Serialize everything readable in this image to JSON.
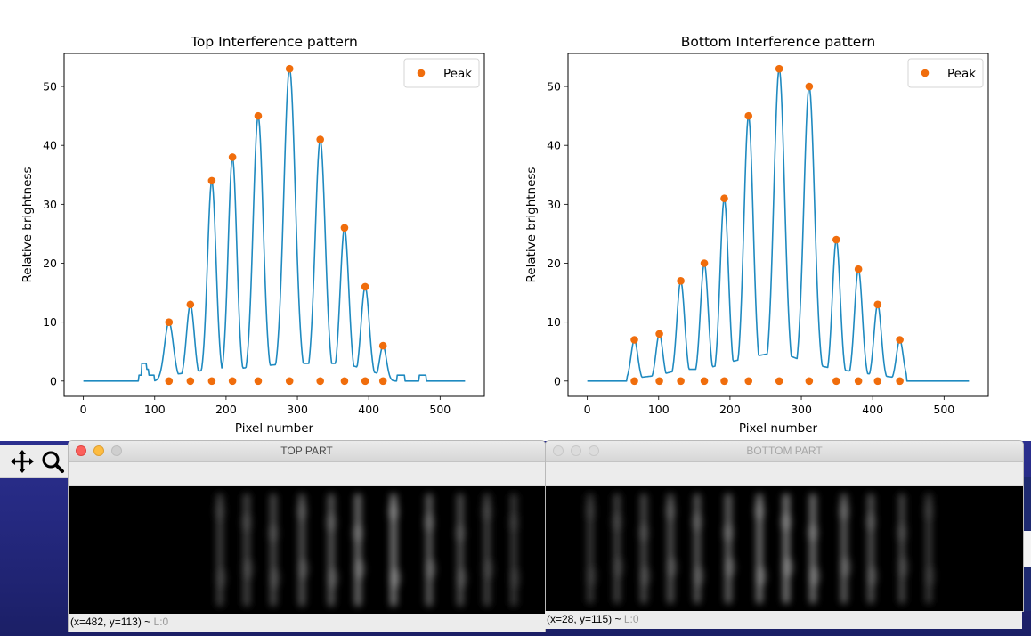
{
  "chart_data": [
    {
      "type": "line",
      "title": "Top Interference pattern",
      "xlabel": "Pixel number",
      "ylabel": "Relative brightness",
      "xlim": [
        -27,
        562
      ],
      "ylim": [
        -2.6,
        55.6
      ],
      "xticks": [
        0,
        100,
        200,
        300,
        400,
        500
      ],
      "yticks": [
        0,
        10,
        20,
        30,
        40,
        50
      ],
      "line_color": "#1f8ac0",
      "peak_color": "#f06d0c",
      "legend": {
        "position": "top-right",
        "label": "Peak"
      },
      "peaks": {
        "name": "Peak",
        "x": [
          120,
          150,
          180,
          209,
          245,
          289,
          332,
          366,
          395,
          420,
          120,
          150,
          180,
          209,
          245,
          289,
          332,
          366,
          395,
          420
        ],
        "y": [
          10,
          13,
          34,
          38,
          45,
          53,
          41,
          26,
          16,
          6,
          0,
          0,
          0,
          0,
          0,
          0,
          0,
          0,
          0,
          0
        ]
      },
      "signal": {
        "x_end": 535,
        "baseline_steps": [
          [
            78,
            82,
            1
          ],
          [
            82,
            89,
            3
          ],
          [
            89,
            92,
            2
          ],
          [
            92,
            100,
            1
          ],
          [
            432,
            440,
            0
          ],
          [
            440,
            445,
            1
          ],
          [
            445,
            451,
            1
          ],
          [
            451,
            455,
            0
          ],
          [
            471,
            475,
            1
          ],
          [
            475,
            481,
            1
          ]
        ],
        "fringes": [
          [
            120,
            10,
            6.2
          ],
          [
            150,
            13,
            5.5
          ],
          [
            180,
            34,
            6.0
          ],
          [
            209,
            38,
            6.0
          ],
          [
            245,
            45,
            7.0
          ],
          [
            289,
            53,
            8.0
          ],
          [
            332,
            41,
            7.0
          ],
          [
            366,
            26,
            6.0
          ],
          [
            395,
            16,
            5.8
          ],
          [
            420,
            6,
            4.8
          ]
        ],
        "troughs": [
          1,
          1.5,
          2,
          2,
          2.5,
          3,
          3,
          3,
          2,
          1
        ],
        "support": [
          97,
          440
        ]
      }
    },
    {
      "type": "line",
      "title": "Bottom Interference pattern",
      "xlabel": "Pixel number",
      "ylabel": "Relative brightness",
      "xlim": [
        -27,
        562
      ],
      "ylim": [
        -2.6,
        55.6
      ],
      "xticks": [
        0,
        100,
        200,
        300,
        400,
        500
      ],
      "yticks": [
        0,
        10,
        20,
        30,
        40,
        50
      ],
      "line_color": "#1f8ac0",
      "peak_color": "#f06d0c",
      "legend": {
        "position": "top-right",
        "label": "Peak"
      },
      "peaks": {
        "name": "Peak",
        "x": [
          66,
          101,
          131,
          164,
          192,
          226,
          269,
          311,
          349,
          380,
          407,
          438,
          66,
          101,
          131,
          164,
          192,
          226,
          269,
          311,
          349,
          380,
          407,
          438
        ],
        "y": [
          7,
          8,
          17,
          20,
          31,
          45,
          53,
          50,
          24,
          19,
          13,
          7,
          0,
          0,
          0,
          0,
          0,
          0,
          0,
          0,
          0,
          0,
          0,
          0
        ]
      },
      "signal": {
        "x_end": 535,
        "baseline_steps": [],
        "fringes": [
          [
            66,
            7,
            4.8
          ],
          [
            101,
            8,
            4.8
          ],
          [
            131,
            17,
            5.5
          ],
          [
            164,
            20,
            5.5
          ],
          [
            192,
            31,
            5.8
          ],
          [
            226,
            45,
            6.5
          ],
          [
            269,
            53,
            7.5
          ],
          [
            311,
            50,
            7.5
          ],
          [
            349,
            24,
            5.5
          ],
          [
            380,
            19,
            5.5
          ],
          [
            407,
            13,
            5.2
          ],
          [
            438,
            7,
            4.8
          ]
        ],
        "troughs": [
          0.5,
          1,
          2,
          2,
          3,
          4,
          5,
          3,
          2,
          1.5,
          1,
          0.5
        ],
        "support": [
          56,
          447
        ]
      }
    }
  ],
  "windows": [
    {
      "title": "TOP PART",
      "active": true,
      "status_coords": "(x=482, y=113) ~ ",
      "status_level": "L:0"
    },
    {
      "title": "BOTTOM PART",
      "active": false,
      "status_coords": "(x=28, y=115) ~ ",
      "status_level": "L:0"
    }
  ],
  "toolbar": {
    "icons": [
      "move-icon",
      "zoom-icon"
    ]
  },
  "image_fringes": {
    "top": {
      "x": [
        170,
        200,
        230,
        262,
        295,
        325,
        365,
        405,
        440,
        470,
        500
      ],
      "y": [
        0.32,
        0.38,
        0.45,
        0.55,
        0.62,
        0.85,
        1.0,
        0.7,
        0.5,
        0.35,
        0.25
      ]
    },
    "bottom": {
      "x": [
        50,
        80,
        110,
        140,
        170,
        205,
        240,
        270,
        300,
        335,
        365,
        400,
        430
      ],
      "y": [
        0.25,
        0.35,
        0.45,
        0.55,
        0.62,
        0.75,
        0.9,
        1.0,
        0.9,
        0.7,
        0.55,
        0.4,
        0.25
      ]
    }
  }
}
